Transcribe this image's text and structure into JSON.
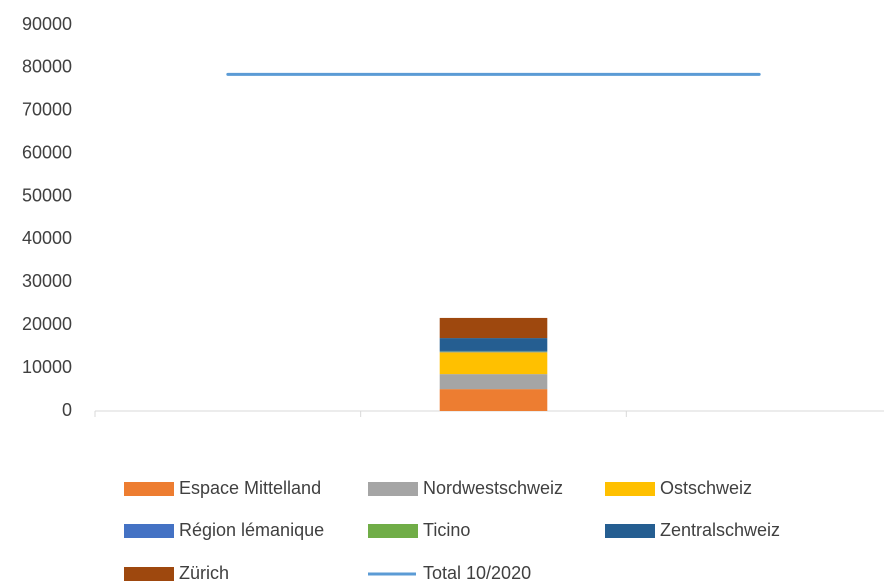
{
  "chart_data": {
    "type": "bar",
    "categories": [
      null,
      null,
      null
    ],
    "series": [
      {
        "name": "Espace Mittelland",
        "color": "#ED7D31",
        "values": [
          null,
          5100,
          null
        ]
      },
      {
        "name": "Nordwestschweiz",
        "color": "#A5A5A5",
        "values": [
          null,
          3500,
          null
        ]
      },
      {
        "name": "Ostschweiz",
        "color": "#FFC000",
        "values": [
          null,
          5100,
          null
        ]
      },
      {
        "name": "Région lémanique",
        "color": "#4472C4",
        "values": [
          null,
          200,
          null
        ]
      },
      {
        "name": "Ticino",
        "color": "#70AD47",
        "values": [
          null,
          100,
          null
        ]
      },
      {
        "name": "Zentralschweiz",
        "color": "#255E91",
        "values": [
          null,
          3000,
          null
        ]
      },
      {
        "name": "Zürich",
        "color": "#9E480E",
        "values": [
          null,
          4700,
          null
        ]
      },
      {
        "name": "Total 10/2020",
        "color": "#5B9BD5",
        "type": "line",
        "values": [
          78500,
          78500,
          78500
        ]
      }
    ],
    "stacked": true,
    "ylim": [
      0,
      90000
    ],
    "yticks": [
      0,
      10000,
      20000,
      30000,
      40000,
      50000,
      60000,
      70000,
      80000,
      90000
    ],
    "grid": false,
    "legend": "bottom"
  }
}
